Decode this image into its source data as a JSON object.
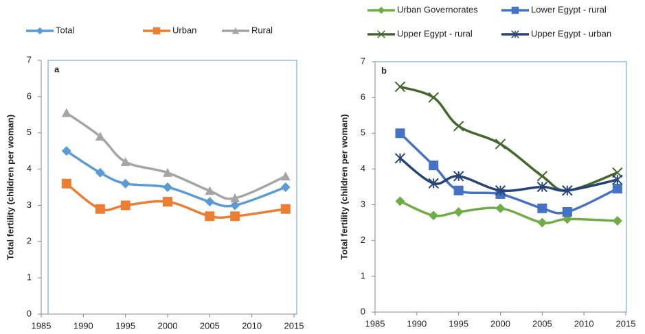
{
  "chart_data": [
    {
      "type": "line",
      "panel_label": "a",
      "y_label": "Total fertility (children per woman)",
      "x": [
        1988,
        1992,
        1995,
        2000,
        2005,
        2008,
        2014
      ],
      "xlim": [
        1985,
        2015
      ],
      "xticks": [
        1985,
        1990,
        1995,
        2000,
        2005,
        2010,
        2015
      ],
      "ylim": [
        0,
        7
      ],
      "yticks": [
        0,
        1,
        2,
        3,
        4,
        5,
        6,
        7
      ],
      "grid": false,
      "legend": "top",
      "series": [
        {
          "name": "Total",
          "color": "#5b9bd5",
          "marker": "diamond",
          "values": [
            4.5,
            3.9,
            3.6,
            3.5,
            3.1,
            3.0,
            3.5
          ]
        },
        {
          "name": "Urban",
          "color": "#ed7d31",
          "marker": "square",
          "values": [
            3.6,
            2.9,
            3.0,
            3.1,
            2.7,
            2.7,
            2.9
          ]
        },
        {
          "name": "Rural",
          "color": "#a5a5a5",
          "marker": "triangle",
          "values": [
            5.55,
            4.9,
            4.2,
            3.9,
            3.4,
            3.2,
            3.8
          ]
        }
      ]
    },
    {
      "type": "line",
      "panel_label": "b",
      "y_label": "Total fertility (children per woman)",
      "x": [
        1988,
        1992,
        1995,
        2000,
        2005,
        2008,
        2014
      ],
      "xlim": [
        1985,
        2015
      ],
      "xticks": [
        1985,
        1990,
        1995,
        2000,
        2005,
        2010,
        2015
      ],
      "ylim": [
        0,
        7
      ],
      "yticks": [
        0,
        1,
        2,
        3,
        4,
        5,
        6,
        7
      ],
      "grid": false,
      "legend": "top",
      "series": [
        {
          "name": "Urban Governorates",
          "color": "#70ad47",
          "marker": "diamond",
          "values": [
            3.1,
            2.7,
            2.8,
            2.9,
            2.5,
            2.6,
            2.55
          ]
        },
        {
          "name": "Lower Egypt - rural",
          "color": "#4472c4",
          "marker": "square",
          "values": [
            5.0,
            4.1,
            3.4,
            3.3,
            2.9,
            2.8,
            3.45
          ]
        },
        {
          "name": "Upper Egypt - rural",
          "color": "#43682b",
          "marker": "x",
          "values": [
            6.3,
            6.0,
            5.2,
            4.7,
            3.8,
            3.4,
            3.9
          ]
        },
        {
          "name": "Upper Egypt - urban",
          "color": "#264478",
          "marker": "asterisk",
          "values": [
            4.3,
            3.6,
            3.8,
            3.4,
            3.5,
            3.4,
            3.7
          ]
        }
      ]
    }
  ]
}
